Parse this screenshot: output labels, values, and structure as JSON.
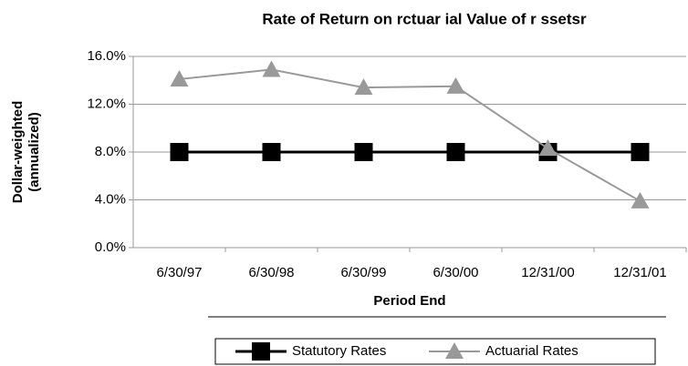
{
  "chart_data": {
    "type": "line",
    "title": "Rate of Return on rctuar ial Value of r ssetsr",
    "ylabel": [
      "Dollar-weighted",
      "(annualized)"
    ],
    "xlabel": "Period End",
    "categories": [
      "6/30/97",
      "6/30/98",
      "6/30/99",
      "6/30/00",
      "12/31/00",
      "12/31/01"
    ],
    "series": [
      {
        "name": "Statutory Rates",
        "color": "#000000",
        "marker": "square",
        "values": [
          8,
          8,
          8,
          8,
          8,
          8
        ]
      },
      {
        "name": "Actuarial Rates",
        "color": "#999999",
        "marker": "triangle",
        "values": [
          14.1,
          14.9,
          13.4,
          13.5,
          8.3,
          3.9
        ]
      }
    ],
    "ylim": [
      0,
      16
    ],
    "yticks": [
      {
        "value": 0,
        "label": "0.0%"
      },
      {
        "value": 4,
        "label": "4.0%"
      },
      {
        "value": 8,
        "label": "8.0%"
      },
      {
        "value": 12,
        "label": "12.0%"
      },
      {
        "value": 16,
        "label": "16.0%"
      }
    ],
    "grid": true,
    "legend": "bottom"
  }
}
